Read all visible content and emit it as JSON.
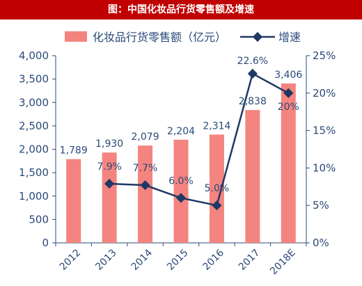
{
  "title": "图：中国化妆品行货零售额及增速",
  "chart_data": {
    "type": "bar",
    "categories": [
      "2012",
      "2013",
      "2014",
      "2015",
      "2016",
      "2017",
      "2018E"
    ],
    "series": [
      {
        "name": "化妆品行货零售额（亿元）",
        "type": "bar",
        "axis": "left",
        "values": [
          1789,
          1930,
          2079,
          2204,
          2314,
          2838,
          3406
        ],
        "labels": [
          "1,789",
          "1,930",
          "2,079",
          "2,204",
          "2,314",
          "2,838",
          "3,406"
        ]
      },
      {
        "name": "增速",
        "type": "line",
        "axis": "right",
        "values": [
          null,
          7.9,
          7.7,
          6.0,
          5.0,
          22.6,
          20.0
        ],
        "labels": [
          "",
          "7.9%",
          "7.7%",
          "6.0%",
          "5.0%",
          "22.6%",
          "20%"
        ]
      }
    ],
    "y_left": {
      "lim": [
        0,
        4000
      ],
      "ticks": [
        "0",
        "500",
        "1,000",
        "1,500",
        "2,000",
        "2,500",
        "3,000",
        "3,500",
        "4,000"
      ]
    },
    "y_right": {
      "lim": [
        0,
        25
      ],
      "ticks": [
        "0%",
        "5%",
        "10%",
        "15%",
        "20%",
        "25%"
      ]
    },
    "legend_position": "top",
    "colors": {
      "bar": "#f4847f",
      "line": "#1f3864",
      "title_bg": "#c00000"
    }
  }
}
